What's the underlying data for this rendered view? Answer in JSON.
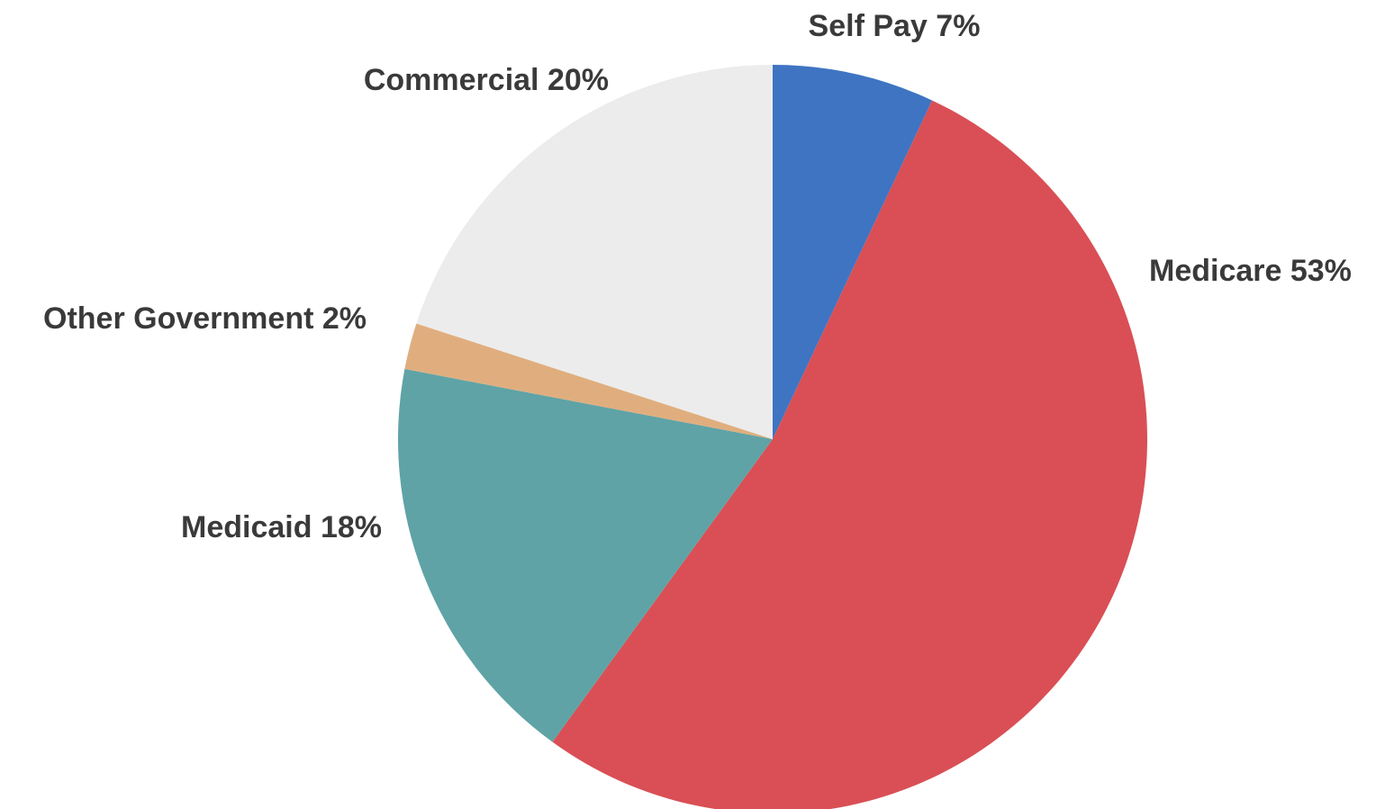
{
  "chart_data": {
    "type": "pie",
    "title": "",
    "slices": [
      {
        "name": "Self Pay",
        "value": 7,
        "label": "Self Pay 7%",
        "color": "#3f74c2"
      },
      {
        "name": "Medicare",
        "value": 53,
        "label": "Medicare 53%",
        "color": "#d94f55"
      },
      {
        "name": "Medicaid",
        "value": 18,
        "label": "Medicaid 18%",
        "color": "#5fa3a6"
      },
      {
        "name": "Other Government",
        "value": 2,
        "label": "Other Government 2%",
        "color": "#e0ae7e"
      },
      {
        "name": "Commercial",
        "value": 20,
        "label": "Commercial 20%",
        "color": "#ececec"
      }
    ],
    "start_angle": "12 o'clock",
    "direction": "clockwise",
    "legend": "none (labels placed beside slices)"
  }
}
